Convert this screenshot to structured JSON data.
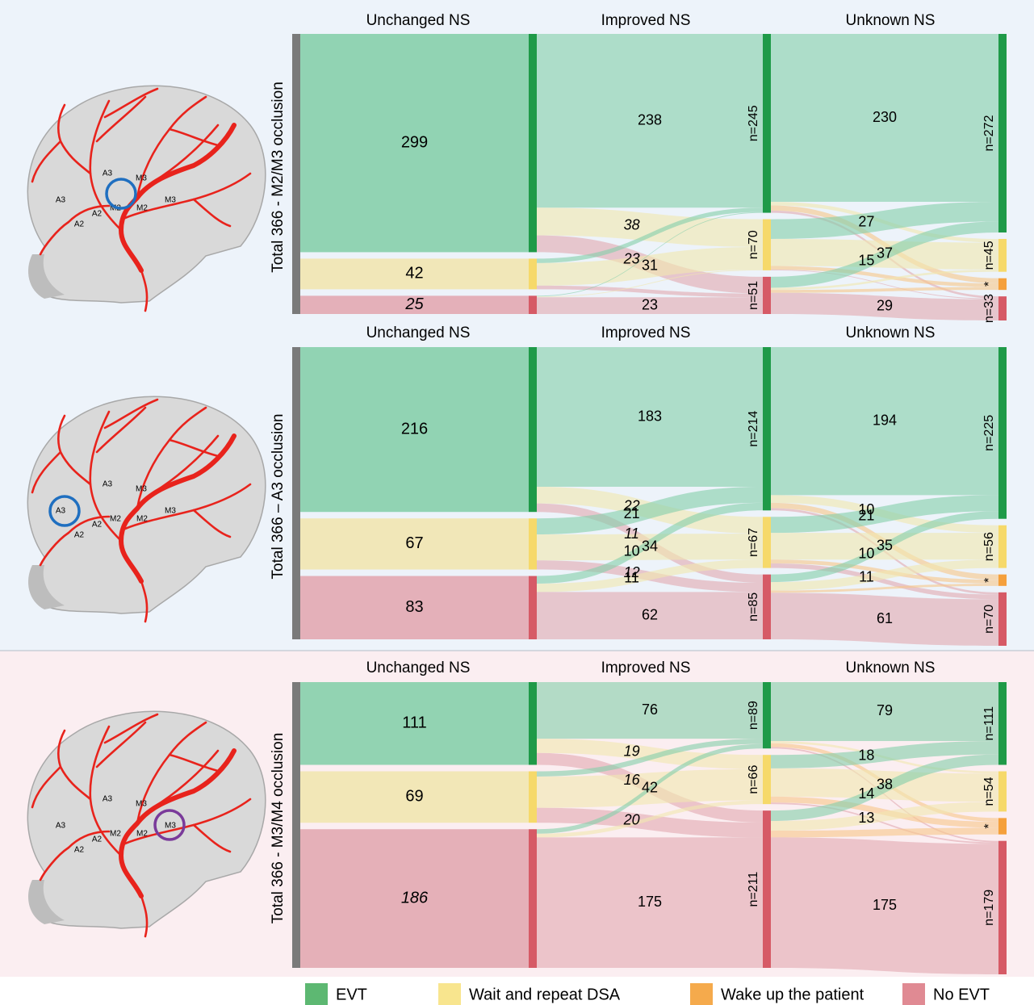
{
  "legend": [
    {
      "name": "EVT",
      "color": "#1f9a48",
      "fill": "#86cfab",
      "swatch": "#5db872"
    },
    {
      "name": "Wait and repeat DSA",
      "color": "#f6d96a",
      "fill": "#f1e6b0",
      "swatch": "#f8e58e"
    },
    {
      "name": "Wake up the patient",
      "color": "#f5a03c",
      "fill": "#f7c68a",
      "swatch": "#f5aa4c"
    },
    {
      "name": "No EVT",
      "color": "#d65a66",
      "fill": "#e2a9b1",
      "swatch": "#e08a93"
    }
  ],
  "chart_data": [
    {
      "type": "sankey",
      "y_label": "Total 366 - M2/M3 occlusion",
      "columns": [
        "Unchanged NS",
        "Improved NS",
        "Unknown NS"
      ],
      "nodes": [
        [
          {
            "class": 0,
            "value": 299
          },
          {
            "class": 1,
            "value": 42
          },
          {
            "class": 3,
            "value": 25,
            "italic": true
          }
        ],
        [
          {
            "class": 0,
            "value": 245,
            "value_label": "n=245"
          },
          {
            "class": 1,
            "value": 70,
            "value_label": "n=70"
          },
          {
            "class": 3,
            "value": 51,
            "value_label": "n=51"
          }
        ],
        [
          {
            "class": 0,
            "value": 272,
            "value_label": "n=272"
          },
          {
            "class": 1,
            "value": 45,
            "value_label": "n=45"
          },
          {
            "class": 2,
            "value": 16,
            "value_label": "*"
          },
          {
            "class": 3,
            "value": 33,
            "value_label": "n=33"
          }
        ]
      ],
      "links": [
        {
          "stage": 0,
          "from": 0,
          "to": 0,
          "value": 238,
          "labeled": true
        },
        {
          "stage": 0,
          "from": 0,
          "to": 1,
          "value": 38,
          "labeled": true,
          "italic": true
        },
        {
          "stage": 0,
          "from": 0,
          "to": 2,
          "value": 23,
          "labeled": true,
          "italic": true
        },
        {
          "stage": 0,
          "from": 1,
          "to": 0,
          "value": 6
        },
        {
          "stage": 0,
          "from": 1,
          "to": 1,
          "value": 31,
          "labeled": true
        },
        {
          "stage": 0,
          "from": 1,
          "to": 2,
          "value": 5
        },
        {
          "stage": 0,
          "from": 2,
          "to": 0,
          "value": 1
        },
        {
          "stage": 0,
          "from": 2,
          "to": 1,
          "value": 1
        },
        {
          "stage": 0,
          "from": 2,
          "to": 2,
          "value": 23,
          "labeled": true
        },
        {
          "stage": 1,
          "from": 0,
          "to": 0,
          "value": 230,
          "labeled": true
        },
        {
          "stage": 1,
          "from": 0,
          "to": 1,
          "value": 5
        },
        {
          "stage": 1,
          "from": 0,
          "to": 2,
          "value": 7
        },
        {
          "stage": 1,
          "from": 0,
          "to": 3,
          "value": 3
        },
        {
          "stage": 1,
          "from": 1,
          "to": 0,
          "value": 27,
          "labeled": true
        },
        {
          "stage": 1,
          "from": 1,
          "to": 1,
          "value": 37,
          "labeled": true
        },
        {
          "stage": 1,
          "from": 1,
          "to": 2,
          "value": 5
        },
        {
          "stage": 1,
          "from": 1,
          "to": 3,
          "value": 1
        },
        {
          "stage": 1,
          "from": 2,
          "to": 0,
          "value": 15,
          "labeled": true
        },
        {
          "stage": 1,
          "from": 2,
          "to": 1,
          "value": 3
        },
        {
          "stage": 1,
          "from": 2,
          "to": 2,
          "value": 4
        },
        {
          "stage": 1,
          "from": 2,
          "to": 3,
          "value": 29,
          "labeled": true
        }
      ]
    },
    {
      "type": "sankey",
      "y_label": "Total 366 – A3 occlusion",
      "columns": [
        "Unchanged NS",
        "Improved NS",
        "Unknown NS"
      ],
      "nodes": [
        [
          {
            "class": 0,
            "value": 216
          },
          {
            "class": 1,
            "value": 67
          },
          {
            "class": 3,
            "value": 83
          }
        ],
        [
          {
            "class": 0,
            "value": 214,
            "value_label": "n=214"
          },
          {
            "class": 1,
            "value": 67,
            "value_label": "n=67"
          },
          {
            "class": 3,
            "value": 85,
            "value_label": "n=85"
          }
        ],
        [
          {
            "class": 0,
            "value": 225,
            "value_label": "n=225"
          },
          {
            "class": 1,
            "value": 56,
            "value_label": "n=56"
          },
          {
            "class": 2,
            "value": 15,
            "value_label": "*"
          },
          {
            "class": 3,
            "value": 70,
            "value_label": "n=70"
          }
        ]
      ],
      "links": [
        {
          "stage": 0,
          "from": 0,
          "to": 0,
          "value": 183,
          "labeled": true
        },
        {
          "stage": 0,
          "from": 0,
          "to": 1,
          "value": 22,
          "labeled": true,
          "italic": true
        },
        {
          "stage": 0,
          "from": 0,
          "to": 2,
          "value": 11,
          "labeled": true,
          "italic": true
        },
        {
          "stage": 0,
          "from": 1,
          "to": 0,
          "value": 21,
          "labeled": true
        },
        {
          "stage": 0,
          "from": 1,
          "to": 1,
          "value": 34,
          "labeled": true
        },
        {
          "stage": 0,
          "from": 1,
          "to": 2,
          "value": 12,
          "labeled": true,
          "italic": true
        },
        {
          "stage": 0,
          "from": 2,
          "to": 0,
          "value": 10,
          "labeled": true
        },
        {
          "stage": 0,
          "from": 2,
          "to": 1,
          "value": 11,
          "labeled": true
        },
        {
          "stage": 0,
          "from": 2,
          "to": 2,
          "value": 62,
          "labeled": true
        },
        {
          "stage": 1,
          "from": 0,
          "to": 0,
          "value": 194,
          "labeled": true
        },
        {
          "stage": 1,
          "from": 0,
          "to": 1,
          "value": 10,
          "labeled": true
        },
        {
          "stage": 1,
          "from": 0,
          "to": 2,
          "value": 7
        },
        {
          "stage": 1,
          "from": 0,
          "to": 3,
          "value": 3
        },
        {
          "stage": 1,
          "from": 1,
          "to": 0,
          "value": 21,
          "labeled": true
        },
        {
          "stage": 1,
          "from": 1,
          "to": 1,
          "value": 35,
          "labeled": true
        },
        {
          "stage": 1,
          "from": 1,
          "to": 2,
          "value": 5
        },
        {
          "stage": 1,
          "from": 1,
          "to": 3,
          "value": 6
        },
        {
          "stage": 1,
          "from": 2,
          "to": 0,
          "value": 10,
          "labeled": true
        },
        {
          "stage": 1,
          "from": 2,
          "to": 1,
          "value": 11,
          "labeled": true
        },
        {
          "stage": 1,
          "from": 2,
          "to": 2,
          "value": 3
        },
        {
          "stage": 1,
          "from": 2,
          "to": 3,
          "value": 61,
          "labeled": true
        }
      ]
    },
    {
      "type": "sankey",
      "y_label": "Total 366 - M3/M4 occlusion",
      "columns": [
        "Unchanged NS",
        "Improved NS",
        "Unknown NS"
      ],
      "nodes": [
        [
          {
            "class": 0,
            "value": 111
          },
          {
            "class": 1,
            "value": 69
          },
          {
            "class": 3,
            "value": 186,
            "italic": true
          }
        ],
        [
          {
            "class": 0,
            "value": 89,
            "value_label": "n=89"
          },
          {
            "class": 1,
            "value": 66,
            "value_label": "n=66"
          },
          {
            "class": 3,
            "value": 211,
            "value_label": "n=211"
          }
        ],
        [
          {
            "class": 0,
            "value": 111,
            "value_label": "n=111"
          },
          {
            "class": 1,
            "value": 54,
            "value_label": "n=54"
          },
          {
            "class": 2,
            "value": 22,
            "value_label": "*"
          },
          {
            "class": 3,
            "value": 179,
            "value_label": "n=179"
          }
        ]
      ],
      "links": [
        {
          "stage": 0,
          "from": 0,
          "to": 0,
          "value": 76,
          "labeled": true
        },
        {
          "stage": 0,
          "from": 0,
          "to": 1,
          "value": 19,
          "labeled": true,
          "italic": true
        },
        {
          "stage": 0,
          "from": 0,
          "to": 2,
          "value": 16,
          "labeled": true,
          "italic": true
        },
        {
          "stage": 0,
          "from": 1,
          "to": 0,
          "value": 7
        },
        {
          "stage": 0,
          "from": 1,
          "to": 1,
          "value": 42,
          "labeled": true
        },
        {
          "stage": 0,
          "from": 1,
          "to": 2,
          "value": 20,
          "labeled": true,
          "italic": true
        },
        {
          "stage": 0,
          "from": 2,
          "to": 0,
          "value": 6
        },
        {
          "stage": 0,
          "from": 2,
          "to": 1,
          "value": 5
        },
        {
          "stage": 0,
          "from": 2,
          "to": 2,
          "value": 175,
          "labeled": true
        },
        {
          "stage": 1,
          "from": 0,
          "to": 0,
          "value": 79,
          "labeled": true
        },
        {
          "stage": 1,
          "from": 0,
          "to": 1,
          "value": 3
        },
        {
          "stage": 1,
          "from": 0,
          "to": 2,
          "value": 5
        },
        {
          "stage": 1,
          "from": 0,
          "to": 3,
          "value": 2
        },
        {
          "stage": 1,
          "from": 1,
          "to": 0,
          "value": 18,
          "labeled": true
        },
        {
          "stage": 1,
          "from": 1,
          "to": 1,
          "value": 38,
          "labeled": true
        },
        {
          "stage": 1,
          "from": 1,
          "to": 2,
          "value": 8
        },
        {
          "stage": 1,
          "from": 1,
          "to": 3,
          "value": 2
        },
        {
          "stage": 1,
          "from": 2,
          "to": 0,
          "value": 14,
          "labeled": true
        },
        {
          "stage": 1,
          "from": 2,
          "to": 1,
          "value": 13,
          "labeled": true
        },
        {
          "stage": 1,
          "from": 2,
          "to": 2,
          "value": 9
        },
        {
          "stage": 1,
          "from": 2,
          "to": 3,
          "value": 175,
          "labeled": true
        }
      ]
    }
  ],
  "illustrations": [
    {
      "labels": [
        "A3",
        "A2",
        "A3",
        "A2",
        "M2",
        "M3",
        "M2",
        "M3"
      ],
      "circle_color": "#1f6fc0"
    },
    {
      "labels": [
        "A3",
        "A2",
        "A3",
        "A2",
        "M2",
        "M3",
        "M2",
        "M3"
      ],
      "circle_color": "#1f6fc0"
    },
    {
      "labels": [
        "A3",
        "A2",
        "A3",
        "A2",
        "M2",
        "M3",
        "M2",
        "M3"
      ],
      "circle_color": "#7a3a9a"
    }
  ]
}
